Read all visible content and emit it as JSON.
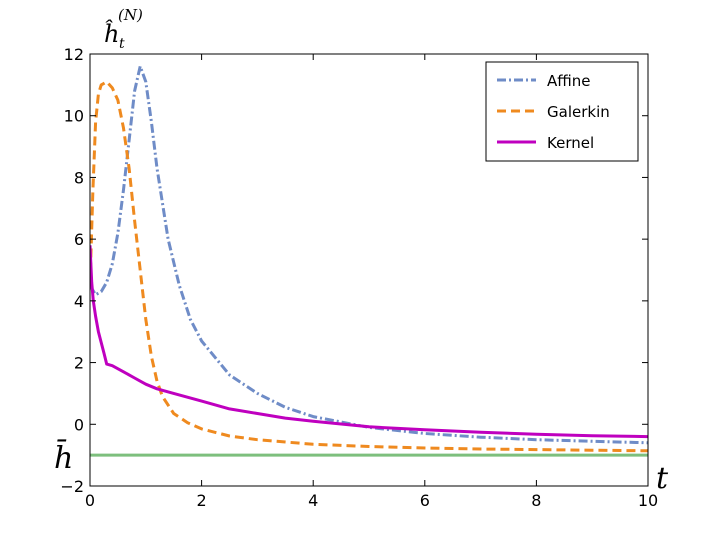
{
  "chart_data": {
    "type": "line",
    "xlim": [
      0,
      10
    ],
    "ylim": [
      -2,
      12
    ],
    "xticks": [
      0,
      2,
      4,
      6,
      8,
      10
    ],
    "yticks": [
      -2,
      0,
      2,
      4,
      6,
      8,
      10,
      12
    ],
    "xlabel": "t",
    "ylabel": "ĥ_t^(N)",
    "ylabel_base": "ĥ",
    "ylabel_sub": "t",
    "ylabel_sup": "(N)",
    "hbar_label": "h̄",
    "hbar_value": -1.0,
    "grid": false,
    "legend_position": "top-right",
    "series": [
      {
        "name": "Affine",
        "color": "#6f8cc7",
        "style": "dashdot",
        "points": [
          [
            0,
            4.5
          ],
          [
            0.1,
            4.2
          ],
          [
            0.2,
            4.3
          ],
          [
            0.3,
            4.6
          ],
          [
            0.4,
            5.2
          ],
          [
            0.5,
            6.2
          ],
          [
            0.6,
            7.6
          ],
          [
            0.7,
            9.2
          ],
          [
            0.8,
            10.8
          ],
          [
            0.9,
            11.6
          ],
          [
            1.0,
            11.1
          ],
          [
            1.1,
            9.8
          ],
          [
            1.2,
            8.3
          ],
          [
            1.4,
            6.0
          ],
          [
            1.6,
            4.5
          ],
          [
            1.8,
            3.4
          ],
          [
            2.0,
            2.7
          ],
          [
            2.5,
            1.6
          ],
          [
            3.0,
            1.0
          ],
          [
            3.5,
            0.55
          ],
          [
            4.0,
            0.25
          ],
          [
            5.0,
            -0.1
          ],
          [
            6.0,
            -0.3
          ],
          [
            7.0,
            -0.42
          ],
          [
            8.0,
            -0.5
          ],
          [
            9.0,
            -0.55
          ],
          [
            10.0,
            -0.6
          ]
        ]
      },
      {
        "name": "Galerkin",
        "color": "#ef8a1f",
        "style": "dashed",
        "points": [
          [
            0,
            4.5
          ],
          [
            0.05,
            7.5
          ],
          [
            0.1,
            9.8
          ],
          [
            0.15,
            10.7
          ],
          [
            0.2,
            11.0
          ],
          [
            0.3,
            11.1
          ],
          [
            0.4,
            10.9
          ],
          [
            0.5,
            10.5
          ],
          [
            0.6,
            9.6
          ],
          [
            0.7,
            8.3
          ],
          [
            0.8,
            6.6
          ],
          [
            0.9,
            5.0
          ],
          [
            1.0,
            3.4
          ],
          [
            1.1,
            2.2
          ],
          [
            1.2,
            1.4
          ],
          [
            1.3,
            0.9
          ],
          [
            1.5,
            0.35
          ],
          [
            1.75,
            0.05
          ],
          [
            2.0,
            -0.15
          ],
          [
            2.5,
            -0.38
          ],
          [
            3.0,
            -0.5
          ],
          [
            4.0,
            -0.65
          ],
          [
            5.0,
            -0.72
          ],
          [
            6.0,
            -0.77
          ],
          [
            7.0,
            -0.8
          ],
          [
            8.0,
            -0.82
          ],
          [
            9.0,
            -0.84
          ],
          [
            10.0,
            -0.86
          ]
        ]
      },
      {
        "name": "Kernel",
        "color": "#bf00bf",
        "style": "solid",
        "points": [
          [
            0,
            5.8
          ],
          [
            0.03,
            4.6
          ],
          [
            0.06,
            4.0
          ],
          [
            0.1,
            3.5
          ],
          [
            0.15,
            3.0
          ],
          [
            0.2,
            2.65
          ],
          [
            0.25,
            2.3
          ],
          [
            0.3,
            1.95
          ],
          [
            0.4,
            1.9
          ],
          [
            0.6,
            1.7
          ],
          [
            0.8,
            1.5
          ],
          [
            1.0,
            1.3
          ],
          [
            1.2,
            1.15
          ],
          [
            1.5,
            1.0
          ],
          [
            2.0,
            0.75
          ],
          [
            2.5,
            0.5
          ],
          [
            3.0,
            0.35
          ],
          [
            3.5,
            0.2
          ],
          [
            4.0,
            0.1
          ],
          [
            5.0,
            -0.08
          ],
          [
            6.0,
            -0.18
          ],
          [
            7.0,
            -0.26
          ],
          [
            8.0,
            -0.32
          ],
          [
            9.0,
            -0.37
          ],
          [
            10.0,
            -0.4
          ]
        ]
      },
      {
        "color": "#7dbf7d",
        "style": "solid",
        "points": [
          [
            0,
            -1.0
          ],
          [
            10.0,
            -1.0
          ]
        ]
      }
    ]
  }
}
